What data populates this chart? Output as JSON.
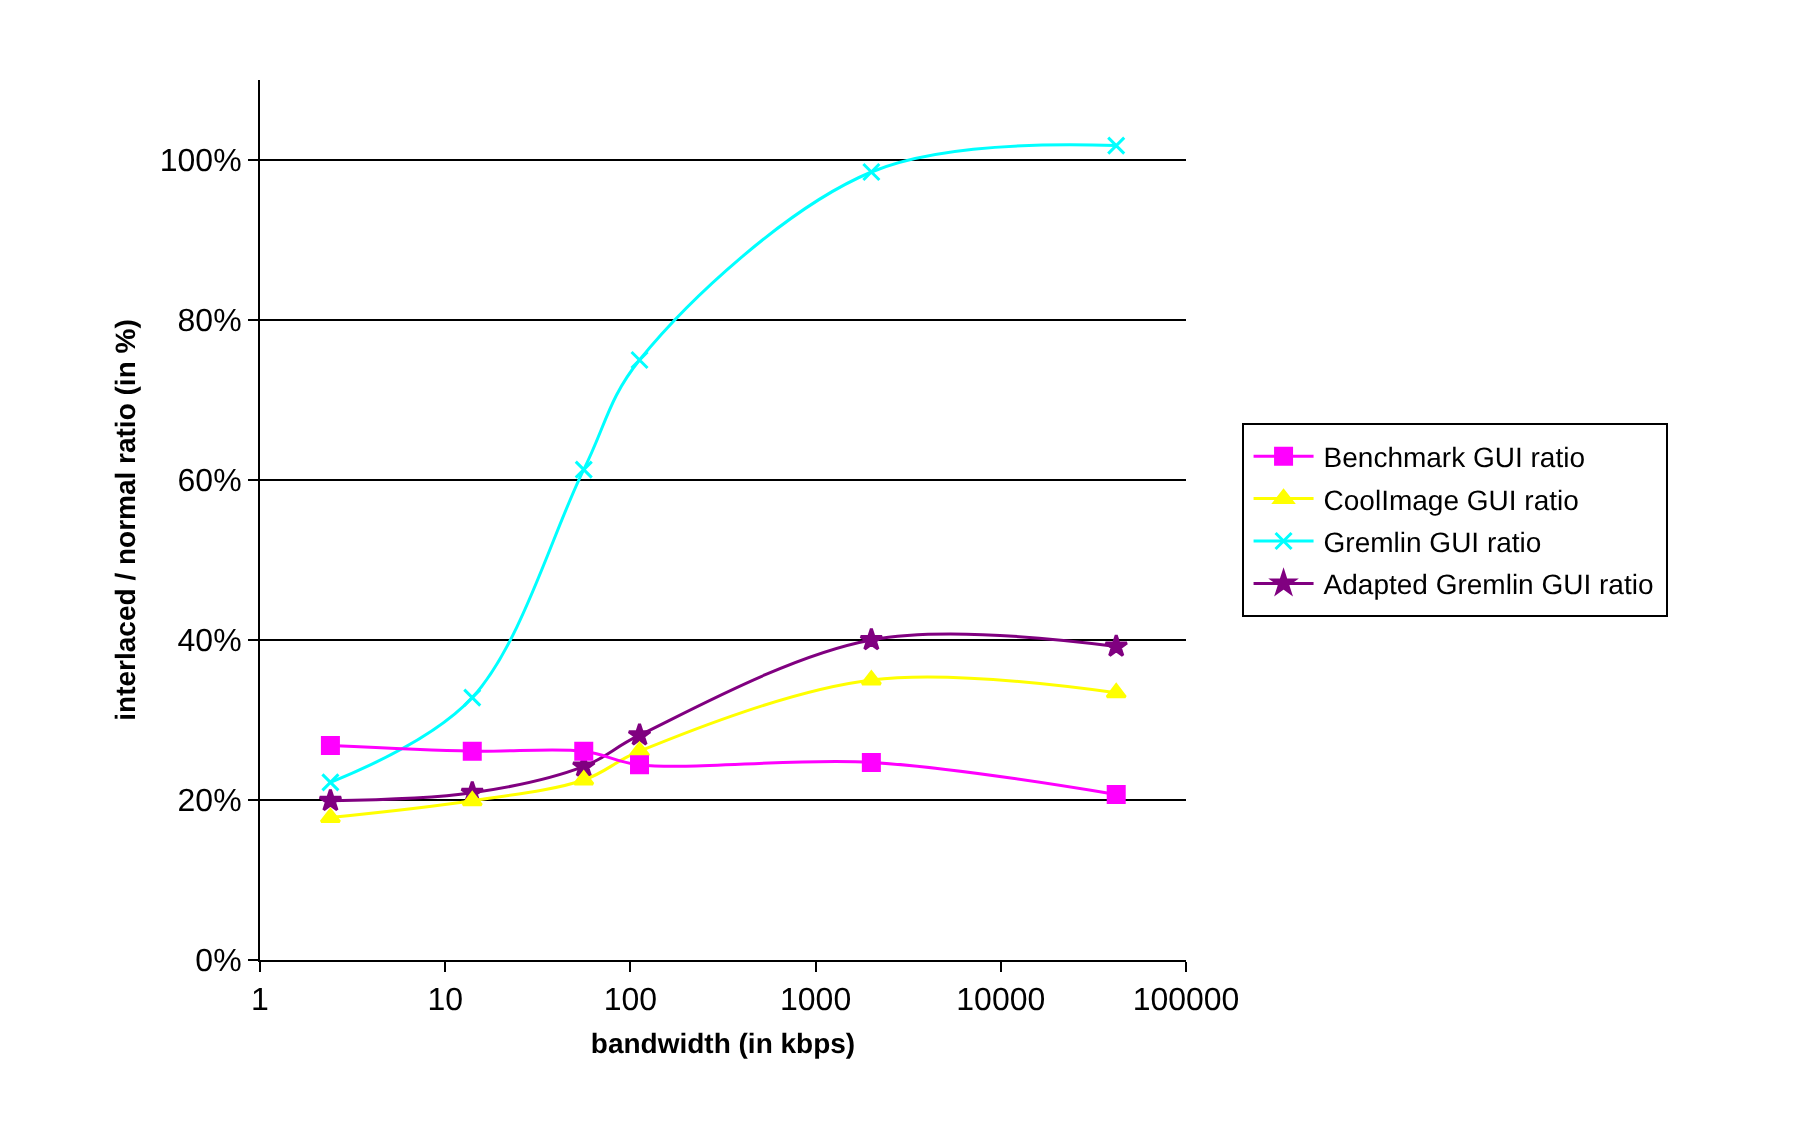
{
  "chart_data": {
    "type": "line",
    "xlabel": "bandwidth (in kbps)",
    "ylabel": "interlaced / normal ratio (in %)",
    "x": [
      2.4,
      14,
      56,
      112,
      2000,
      42000
    ],
    "series": [
      {
        "name": "Benchmark GUI ratio",
        "color": "#ff00ff",
        "marker": "square",
        "values": [
          26.8,
          26.1,
          26.1,
          24.4,
          24.7,
          20.7
        ]
      },
      {
        "name": "CoolImage GUI ratio",
        "color": "#ffff00",
        "marker": "triangle",
        "values": [
          17.8,
          19.9,
          22.5,
          26.1,
          35,
          33.4
        ]
      },
      {
        "name": "Gremlin GUI ratio",
        "color": "#00ffff",
        "marker": "cross",
        "values": [
          22.2,
          32.8,
          61.3,
          75,
          98.5,
          101.8
        ]
      },
      {
        "name": "Adapted Gremlin GUI ratio",
        "color": "#800080",
        "marker": "star",
        "values": [
          19.9,
          20.9,
          24.2,
          28.1,
          40,
          39.2
        ]
      }
    ],
    "log": "x",
    "xlim": [
      1,
      100000
    ],
    "xticks": [
      1,
      10,
      100,
      1000,
      10000,
      100000
    ],
    "ylim": [
      0,
      110
    ],
    "yticks": [
      {
        "value": 0,
        "label": "0%"
      },
      {
        "value": 20,
        "label": "20%"
      },
      {
        "value": 40,
        "label": "40%"
      },
      {
        "value": 60,
        "label": "60%"
      },
      {
        "value": 80,
        "label": "80%"
      },
      {
        "value": 100,
        "label": "100%"
      }
    ],
    "grid": "y",
    "legend": "right"
  }
}
